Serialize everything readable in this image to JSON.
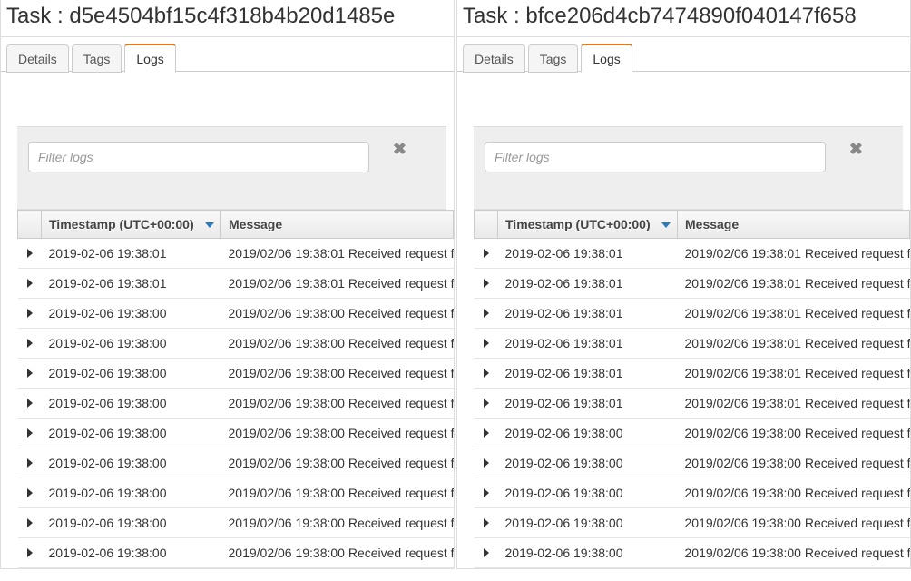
{
  "left": {
    "title": "Task : d5e4504bf15c4f318b4b20d1485e",
    "tabs": {
      "details": "Details",
      "tags": "Tags",
      "logs": "Logs",
      "active": "logs"
    },
    "filter_placeholder": "Filter logs",
    "columns": {
      "timestamp": "Timestamp (UTC+00:00)",
      "message": "Message"
    },
    "rows": [
      {
        "ts": "2019-02-06 19:38:01",
        "msg": "2019/02/06 19:38:01 Received request f"
      },
      {
        "ts": "2019-02-06 19:38:01",
        "msg": "2019/02/06 19:38:01 Received request f"
      },
      {
        "ts": "2019-02-06 19:38:00",
        "msg": "2019/02/06 19:38:00 Received request f"
      },
      {
        "ts": "2019-02-06 19:38:00",
        "msg": "2019/02/06 19:38:00 Received request f"
      },
      {
        "ts": "2019-02-06 19:38:00",
        "msg": "2019/02/06 19:38:00 Received request f"
      },
      {
        "ts": "2019-02-06 19:38:00",
        "msg": "2019/02/06 19:38:00 Received request f"
      },
      {
        "ts": "2019-02-06 19:38:00",
        "msg": "2019/02/06 19:38:00 Received request f"
      },
      {
        "ts": "2019-02-06 19:38:00",
        "msg": "2019/02/06 19:38:00 Received request f"
      },
      {
        "ts": "2019-02-06 19:38:00",
        "msg": "2019/02/06 19:38:00 Received request f"
      },
      {
        "ts": "2019-02-06 19:38:00",
        "msg": "2019/02/06 19:38:00 Received request f"
      },
      {
        "ts": "2019-02-06 19:38:00",
        "msg": "2019/02/06 19:38:00 Received request f"
      }
    ]
  },
  "right": {
    "title": "Task : bfce206d4cb7474890f040147f658",
    "tabs": {
      "details": "Details",
      "tags": "Tags",
      "logs": "Logs",
      "active": "logs"
    },
    "filter_placeholder": "Filter logs",
    "columns": {
      "timestamp": "Timestamp (UTC+00:00)",
      "message": "Message"
    },
    "rows": [
      {
        "ts": "2019-02-06 19:38:01",
        "msg": "2019/02/06 19:38:01 Received request f"
      },
      {
        "ts": "2019-02-06 19:38:01",
        "msg": "2019/02/06 19:38:01 Received request f"
      },
      {
        "ts": "2019-02-06 19:38:01",
        "msg": "2019/02/06 19:38:01 Received request f"
      },
      {
        "ts": "2019-02-06 19:38:01",
        "msg": "2019/02/06 19:38:01 Received request f"
      },
      {
        "ts": "2019-02-06 19:38:01",
        "msg": "2019/02/06 19:38:01 Received request f"
      },
      {
        "ts": "2019-02-06 19:38:01",
        "msg": "2019/02/06 19:38:01 Received request f"
      },
      {
        "ts": "2019-02-06 19:38:00",
        "msg": "2019/02/06 19:38:00 Received request f"
      },
      {
        "ts": "2019-02-06 19:38:00",
        "msg": "2019/02/06 19:38:00 Received request f"
      },
      {
        "ts": "2019-02-06 19:38:00",
        "msg": "2019/02/06 19:38:00 Received request f"
      },
      {
        "ts": "2019-02-06 19:38:00",
        "msg": "2019/02/06 19:38:00 Received request f"
      },
      {
        "ts": "2019-02-06 19:38:00",
        "msg": "2019/02/06 19:38:00 Received request f"
      }
    ]
  },
  "style": {
    "accent_color": "#e47911",
    "sort_caret_color": "#2b7bba",
    "header_gradient_top": "#f9f9f9",
    "header_gradient_bottom": "#e9e9e9",
    "row_border": "#e5e5e5",
    "filter_bg": "#eeeeee"
  }
}
